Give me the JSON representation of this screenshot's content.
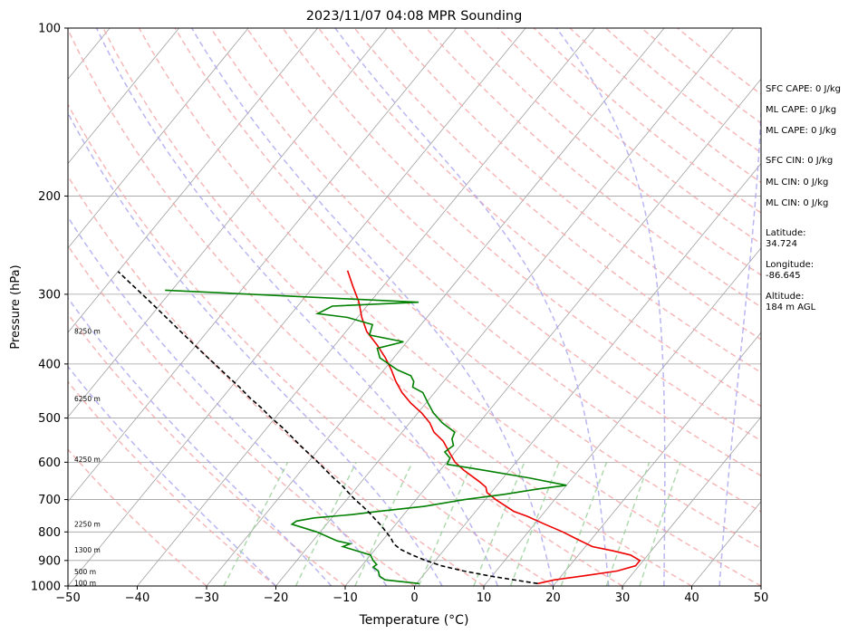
{
  "chart_data": {
    "type": "line",
    "title": "2023/11/07 04:08 MPR Sounding",
    "xlabel": "Temperature (°C)",
    "ylabel": "Pressure (hPa)",
    "xlim": [
      -50,
      50
    ],
    "ylim": [
      1000,
      100
    ],
    "y_scale": "log",
    "x_ticks": [
      "−50",
      "−40",
      "−30",
      "−20",
      "−10",
      "0",
      "10",
      "20",
      "30",
      "40",
      "50"
    ],
    "x_tick_values": [
      -50,
      -40,
      -30,
      -20,
      -10,
      0,
      10,
      20,
      30,
      40,
      50
    ],
    "y_ticks": [
      "100",
      "200",
      "300",
      "400",
      "500",
      "600",
      "700",
      "800",
      "900",
      "1000"
    ],
    "y_tick_values": [
      100,
      200,
      300,
      400,
      500,
      600,
      700,
      800,
      900,
      1000
    ],
    "grid": true,
    "series": [
      {
        "color": "#ee0000",
        "pressure": [
          990,
          975,
          960,
          940,
          920,
          900,
          880,
          865,
          850,
          825,
          800,
          775,
          750,
          735,
          720,
          700,
          680,
          665,
          650,
          620,
          600,
          570,
          550,
          530,
          510,
          490,
          470,
          450,
          430,
          410,
          390,
          370,
          350,
          330,
          310,
          290,
          272
        ],
        "temperature": [
          17.5,
          19.5,
          23,
          27.5,
          29.5,
          29.5,
          27.5,
          24.5,
          21,
          18,
          15,
          11.5,
          8,
          5.5,
          3.8,
          1.5,
          -0.6,
          -1.4,
          -3,
          -6.6,
          -8.8,
          -11.3,
          -13,
          -15.4,
          -17.1,
          -19.4,
          -22.2,
          -24.7,
          -26.9,
          -28.9,
          -31.2,
          -33.9,
          -37,
          -39.4,
          -41.6,
          -44.4,
          -47
        ]
      },
      {
        "color": "#008000",
        "pressure": [
          990,
          975,
          960,
          940,
          925,
          915,
          900,
          880,
          850,
          840,
          830,
          800,
          775,
          765,
          755,
          745,
          735,
          720,
          700,
          685,
          670,
          660,
          640,
          620,
          605,
          590,
          575,
          560,
          545,
          530,
          510,
          490,
          470,
          450,
          440,
          430,
          420,
          410,
          390,
          375,
          365,
          355,
          340,
          330,
          325,
          315,
          310,
          295
        ],
        "temperature": [
          0.4,
          -5,
          -6.2,
          -7,
          -8.2,
          -8,
          -9,
          -10,
          -15,
          -14.3,
          -16.5,
          -20.5,
          -25,
          -24.7,
          -22.5,
          -17.5,
          -14,
          -8,
          -3,
          2.1,
          6.3,
          10,
          3.7,
          -3.8,
          -9.7,
          -10,
          -11.5,
          -11,
          -12,
          -12.4,
          -15.3,
          -17.7,
          -19.7,
          -21.7,
          -23.8,
          -24.3,
          -25.4,
          -28,
          -32,
          -33.5,
          -30.5,
          -36.2,
          -37,
          -41.5,
          -46.2,
          -45,
          -33,
          -71
        ]
      },
      {
        "color": "#000000",
        "pressure": [
          990,
          975,
          960,
          940,
          920,
          900,
          880,
          860,
          840,
          820,
          800,
          780,
          760,
          740,
          720,
          700,
          680,
          660,
          640,
          620,
          600,
          580,
          560,
          540,
          520,
          500,
          480,
          460,
          440,
          420,
          400,
          380,
          360,
          340,
          320,
          300,
          285,
          273
        ],
        "temperature": [
          17.5,
          13.6,
          9.8,
          5.3,
          1.5,
          -1.4,
          -4,
          -6.3,
          -8,
          -9.1,
          -10.5,
          -11.9,
          -13.5,
          -15.1,
          -16.9,
          -18.8,
          -20.6,
          -22.4,
          -24.5,
          -26.5,
          -28.6,
          -30.8,
          -33.1,
          -35.4,
          -37.8,
          -40.5,
          -43.1,
          -46,
          -48.8,
          -51.9,
          -55.1,
          -58.5,
          -62,
          -65.7,
          -69.6,
          -73.8,
          -77.2,
          -80
        ]
      }
    ],
    "height_labels": [
      {
        "text": "100 m",
        "pressure": 988
      },
      {
        "text": "500 m",
        "pressure": 943
      },
      {
        "text": "1300 m",
        "pressure": 862
      },
      {
        "text": "2250 m",
        "pressure": 776
      },
      {
        "text": "4250 m",
        "pressure": 594
      },
      {
        "text": "6250 m",
        "pressure": 462
      },
      {
        "text": "8250 m",
        "pressure": 350
      }
    ],
    "colors": {
      "temperature": "#ee0000",
      "dewpoint": "#008000",
      "parcel": "#000000",
      "dry_adiabats": "#f4a6a6",
      "moist_adiabats": "#a8a4ee",
      "mixing_ratio": "#9ccf9c",
      "isotherms": "#a0a0a0"
    }
  },
  "stats": [
    {
      "label": "SFC CAPE:",
      "value": "0 J/kg",
      "inline": true
    },
    {
      "label": "ML CAPE:",
      "value": "0 J/kg",
      "inline": true
    },
    {
      "label": "ML CAPE:",
      "value": "0 J/kg",
      "inline": true
    },
    {
      "label": "SFC CIN:",
      "value": "0 J/kg",
      "inline": true
    },
    {
      "label": "ML CIN:",
      "value": "0 J/kg",
      "inline": true
    },
    {
      "label": "ML CIN:",
      "value": "0 J/kg",
      "inline": true
    },
    {
      "label": "Latitude:",
      "value": "34.724",
      "inline": false
    },
    {
      "label": "Longitude:",
      "value": "-86.645",
      "inline": false
    },
    {
      "label": "Altitude:",
      "value": "184 m AGL",
      "inline": false
    }
  ]
}
